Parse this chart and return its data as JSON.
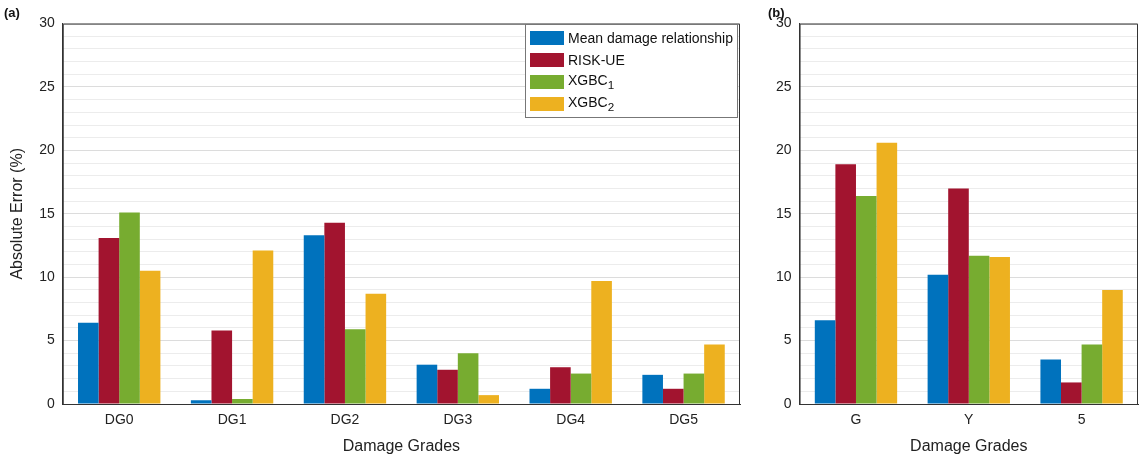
{
  "chart_data": [
    {
      "type": "bar",
      "title": "(a)",
      "xlabel": "Damage Grades",
      "ylabel": "Absolute Error (%)",
      "categories": [
        "DG0",
        "DG1",
        "DG2",
        "DG3",
        "DG4",
        "DG5"
      ],
      "series": [
        {
          "name": "Mean damage relationship",
          "color": "#0072bd",
          "values": [
            6.4,
            0.3,
            13.3,
            3.1,
            1.2,
            2.3
          ]
        },
        {
          "name": "RISK-UE",
          "color": "#a2142f",
          "values": [
            13.1,
            5.8,
            14.3,
            2.7,
            2.9,
            1.2
          ]
        },
        {
          "name": "XGBC$_{1}$",
          "color": "#77ac30",
          "values": [
            15.1,
            0.4,
            5.9,
            4.0,
            2.4,
            2.4
          ]
        },
        {
          "name": "XGBC$_{2}$",
          "color": "#edb120",
          "values": [
            10.5,
            12.1,
            8.7,
            0.7,
            9.7,
            4.7
          ]
        }
      ],
      "ylim": [
        0,
        30
      ],
      "yticks": [
        0,
        {
          "value": 1,
          "label": null
        },
        {
          "value": 2,
          "label": null
        },
        {
          "value": 3,
          "label": null
        },
        {
          "value": 4,
          "label": null
        },
        5,
        {
          "value": 6,
          "label": null
        },
        {
          "value": 7,
          "label": null
        },
        {
          "value": 8,
          "label": null
        },
        {
          "value": 9,
          "label": null
        },
        10,
        {
          "value": 11,
          "label": null
        },
        {
          "value": 12,
          "label": null
        },
        {
          "value": 13,
          "label": null
        },
        {
          "value": 14,
          "label": null
        },
        15,
        {
          "value": 16,
          "label": null
        },
        {
          "value": 17,
          "label": null
        },
        {
          "value": 18,
          "label": null
        },
        {
          "value": 19,
          "label": null
        },
        20,
        {
          "value": 21,
          "label": null
        },
        {
          "value": 22,
          "label": null
        },
        {
          "value": 23,
          "label": null
        },
        {
          "value": 24,
          "label": null
        },
        25,
        {
          "value": 26,
          "label": null
        },
        {
          "value": 27,
          "label": null
        },
        {
          "value": 28,
          "label": null
        },
        {
          "value": 29,
          "label": null
        },
        30
      ],
      "grid": "y",
      "legend": "top right"
    },
    {
      "type": "bar",
      "title": "(b)",
      "xlabel": "Damage Grades",
      "categories": [
        "G",
        "Y",
        "5"
      ],
      "series": [
        {
          "color": "#0072bd",
          "values": [
            6.6,
            10.2,
            3.5
          ]
        },
        {
          "color": "#a2142f",
          "values": [
            18.9,
            17.0,
            1.7
          ]
        },
        {
          "color": "#77ac30",
          "values": [
            16.4,
            11.7,
            4.7
          ]
        },
        {
          "color": "#edb120",
          "values": [
            20.6,
            11.6,
            9.0
          ]
        }
      ],
      "ylim": [
        0,
        30
      ],
      "yticks": [
        0,
        {
          "value": 1,
          "label": null
        },
        {
          "value": 2,
          "label": null
        },
        {
          "value": 3,
          "label": null
        },
        {
          "value": 4,
          "label": null
        },
        5,
        {
          "value": 6,
          "label": null
        },
        {
          "value": 7,
          "label": null
        },
        {
          "value": 8,
          "label": null
        },
        {
          "value": 9,
          "label": null
        },
        10,
        {
          "value": 11,
          "label": null
        },
        {
          "value": 12,
          "label": null
        },
        {
          "value": 13,
          "label": null
        },
        {
          "value": 14,
          "label": null
        },
        15,
        {
          "value": 16,
          "label": null
        },
        {
          "value": 17,
          "label": null
        },
        {
          "value": 18,
          "label": null
        },
        {
          "value": 19,
          "label": null
        },
        20,
        {
          "value": 21,
          "label": null
        },
        {
          "value": 22,
          "label": null
        },
        {
          "value": 23,
          "label": null
        },
        {
          "value": 24,
          "label": null
        },
        25,
        {
          "value": 26,
          "label": null
        },
        {
          "value": 27,
          "label": null
        },
        {
          "value": 28,
          "label": null
        },
        {
          "value": 29,
          "label": null
        },
        30
      ],
      "grid": "y"
    }
  ]
}
